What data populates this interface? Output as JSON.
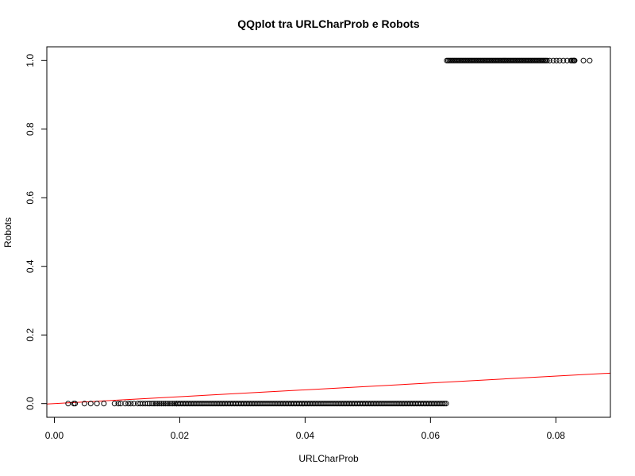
{
  "chart_data": {
    "type": "scatter",
    "title": "QQplot tra URLCharProb e Robots",
    "xlabel": "URLCharProb",
    "ylabel": "Robots",
    "xlim": [
      -0.0012,
      0.0887
    ],
    "ylim": [
      -0.04,
      1.04
    ],
    "xticks": [
      0.0,
      0.02,
      0.04,
      0.06,
      0.08
    ],
    "xtick_labels": [
      "0.00",
      "0.02",
      "0.04",
      "0.06",
      "0.08"
    ],
    "yticks": [
      0.0,
      0.2,
      0.4,
      0.6,
      0.8,
      1.0
    ],
    "ytick_labels": [
      "0.0",
      "0.2",
      "0.4",
      "0.6",
      "0.8",
      "1.0"
    ],
    "grid": false,
    "series": [
      {
        "values_y": 0,
        "x": [
          0.0022,
          0.0031,
          0.0033,
          0.0048,
          0.0058,
          0.0068,
          0.0079,
          0.0096,
          0.0102,
          0.0106,
          0.0113,
          0.0118,
          0.0122,
          0.0127,
          0.0133,
          0.0137,
          0.0141,
          0.0145,
          0.0149,
          0.0152,
          0.0156,
          0.0159,
          0.0162,
          0.0165,
          0.0168,
          0.0171,
          0.0174,
          0.0177,
          0.018,
          0.0183,
          0.0186,
          0.0189,
          0.0192,
          0.0195
        ],
        "dense_range": [
          0.0195,
          0.0625
        ],
        "dense_step": 0.00025
      },
      {
        "values_y": 1,
        "x": [
          0.079,
          0.0796,
          0.0801,
          0.0806,
          0.0812,
          0.0818,
          0.0824,
          0.0826,
          0.0828,
          0.0829,
          0.083,
          0.0844,
          0.0854
        ],
        "dense_range": [
          0.0626,
          0.0786
        ],
        "dense_step": 0.0002
      }
    ],
    "reference_line": {
      "color": "#ff0000",
      "slope": 1.0,
      "intercept": 0.0
    }
  }
}
